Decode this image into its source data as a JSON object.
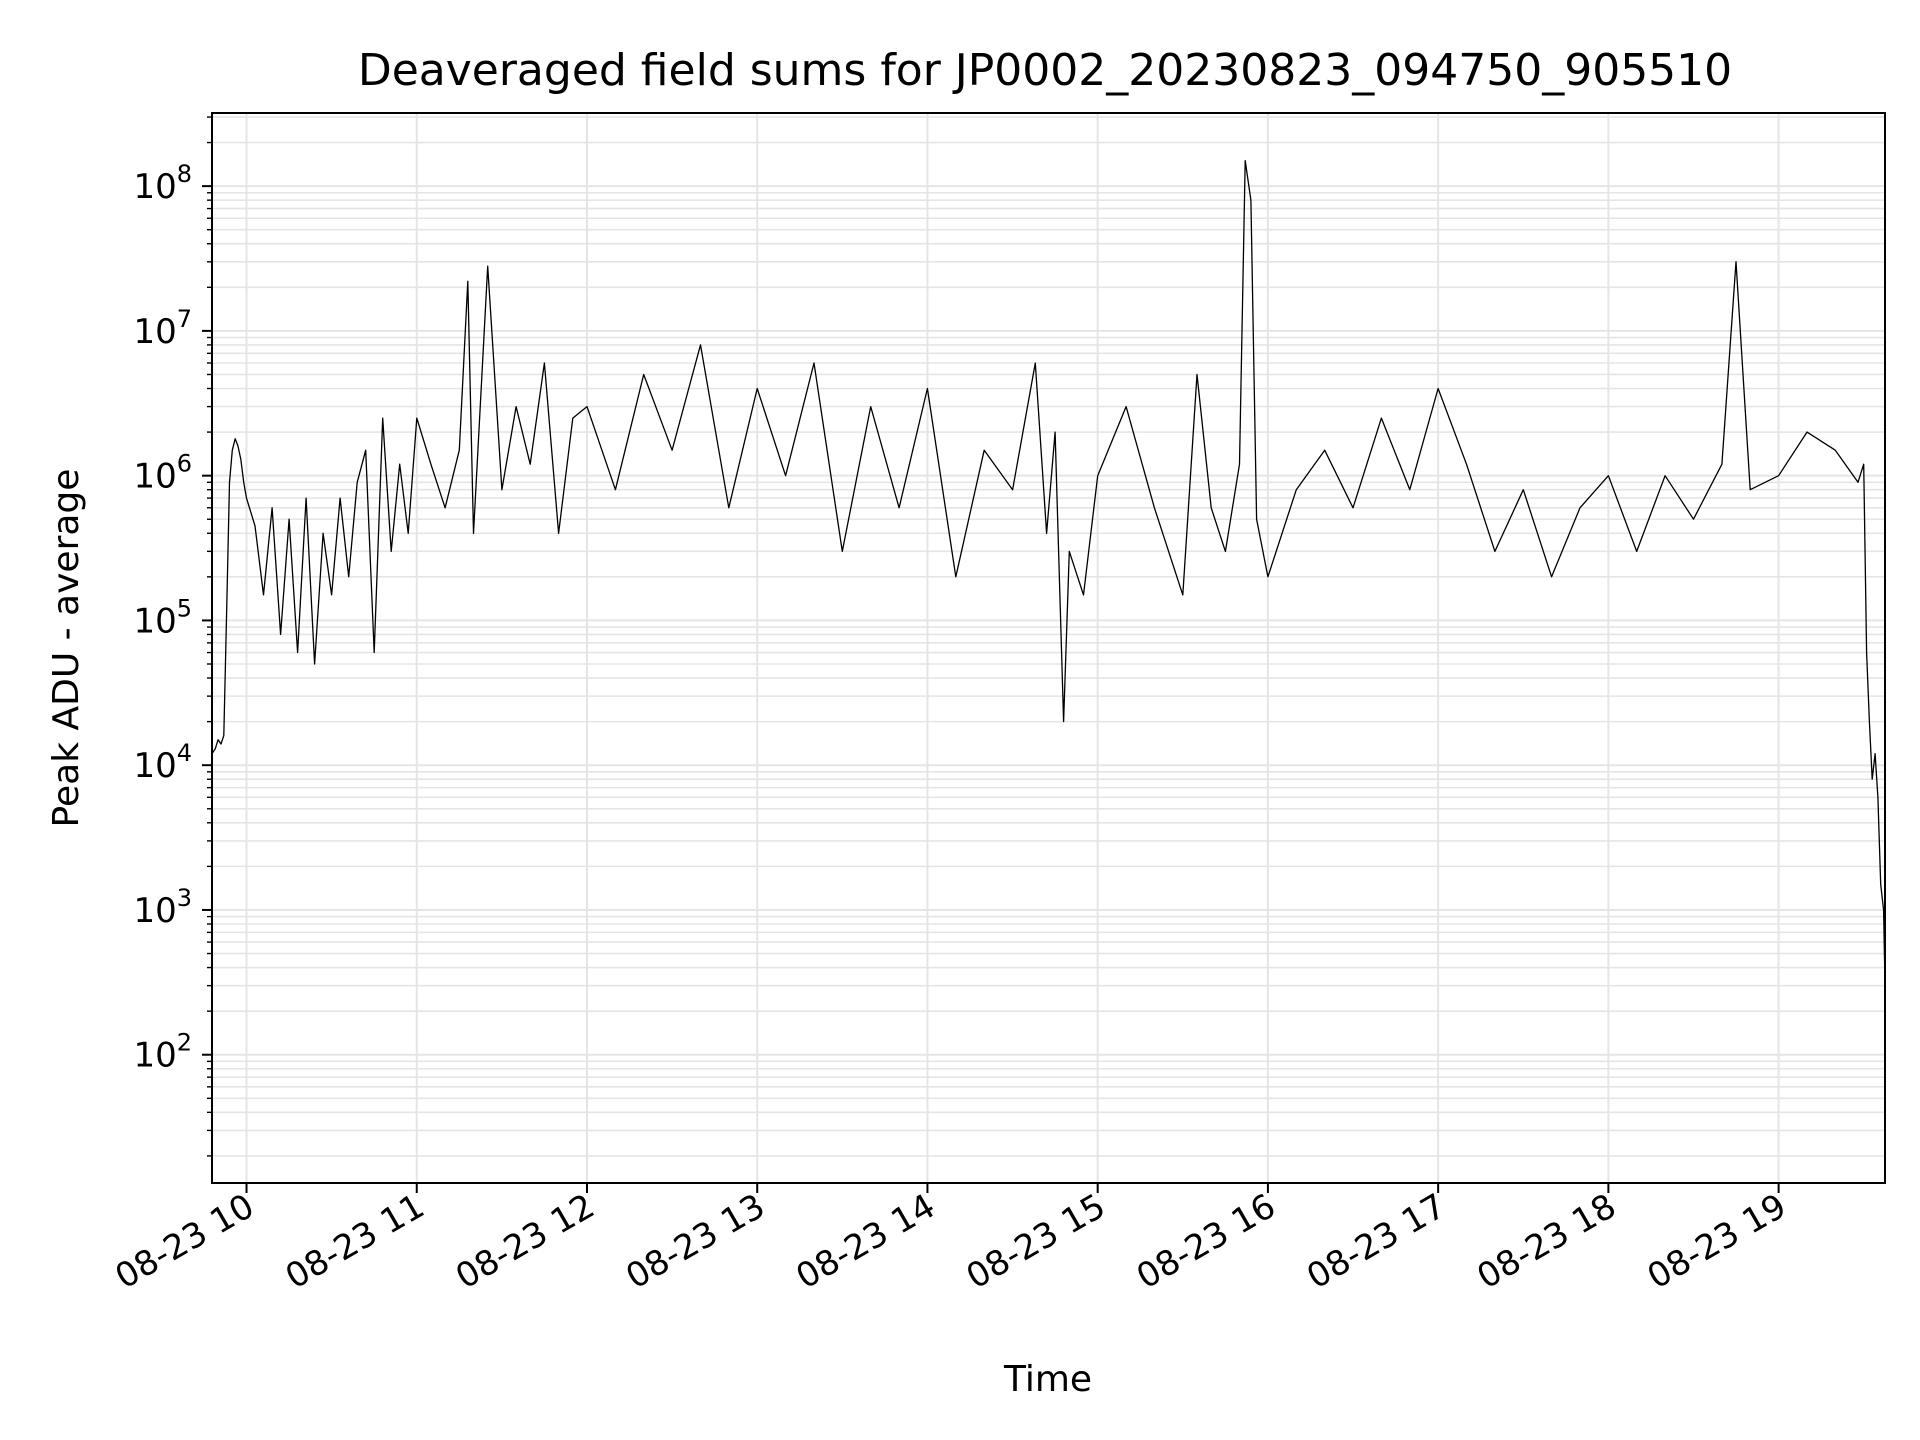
{
  "chart_data": {
    "type": "line",
    "title": "Deaveraged field sums for JP0002_20230823_094750_905510",
    "xlabel": "Time",
    "ylabel": "Peak ADU - average",
    "y_scale": "log",
    "ylim": [
      13,
      320000000
    ],
    "xlim": [
      "2023-08-23 09:47:50",
      "2023-08-23 19:37:30"
    ],
    "grid": true,
    "line_color": "#000000",
    "grid_color": "#e5e5e5",
    "x_ticks": [
      {
        "t": "2023-08-23 10:00:00",
        "label": "08-23 10"
      },
      {
        "t": "2023-08-23 11:00:00",
        "label": "08-23 11"
      },
      {
        "t": "2023-08-23 12:00:00",
        "label": "08-23 12"
      },
      {
        "t": "2023-08-23 13:00:00",
        "label": "08-23 13"
      },
      {
        "t": "2023-08-23 14:00:00",
        "label": "08-23 14"
      },
      {
        "t": "2023-08-23 15:00:00",
        "label": "08-23 15"
      },
      {
        "t": "2023-08-23 16:00:00",
        "label": "08-23 16"
      },
      {
        "t": "2023-08-23 17:00:00",
        "label": "08-23 17"
      },
      {
        "t": "2023-08-23 18:00:00",
        "label": "08-23 18"
      },
      {
        "t": "2023-08-23 19:00:00",
        "label": "08-23 19"
      }
    ],
    "y_ticks": [
      {
        "value": 100,
        "base": "10",
        "exp": "2"
      },
      {
        "value": 1000,
        "base": "10",
        "exp": "3"
      },
      {
        "value": 10000,
        "base": "10",
        "exp": "4"
      },
      {
        "value": 100000,
        "base": "10",
        "exp": "5"
      },
      {
        "value": 1000000,
        "base": "10",
        "exp": "6"
      },
      {
        "value": 10000000,
        "base": "10",
        "exp": "7"
      },
      {
        "value": 100000000,
        "base": "10",
        "exp": "8"
      }
    ],
    "series": [
      {
        "x": [
          "2023-08-23 09:47:50",
          "2023-08-23 09:49:00",
          "2023-08-23 09:50:00",
          "2023-08-23 09:51:00",
          "2023-08-23 09:52:00",
          "2023-08-23 09:53:00",
          "2023-08-23 09:54:00",
          "2023-08-23 09:55:00",
          "2023-08-23 09:56:00",
          "2023-08-23 09:57:00",
          "2023-08-23 09:58:00",
          "2023-08-23 09:59:00",
          "2023-08-23 10:00:00",
          "2023-08-23 10:03:00",
          "2023-08-23 10:06:00",
          "2023-08-23 10:09:00",
          "2023-08-23 10:12:00",
          "2023-08-23 10:15:00",
          "2023-08-23 10:18:00",
          "2023-08-23 10:21:00",
          "2023-08-23 10:24:00",
          "2023-08-23 10:27:00",
          "2023-08-23 10:30:00",
          "2023-08-23 10:33:00",
          "2023-08-23 10:36:00",
          "2023-08-23 10:39:00",
          "2023-08-23 10:42:00",
          "2023-08-23 10:45:00",
          "2023-08-23 10:48:00",
          "2023-08-23 10:51:00",
          "2023-08-23 10:54:00",
          "2023-08-23 10:57:00",
          "2023-08-23 11:00:00",
          "2023-08-23 11:05:00",
          "2023-08-23 11:10:00",
          "2023-08-23 11:15:00",
          "2023-08-23 11:18:00",
          "2023-08-23 11:20:00",
          "2023-08-23 11:25:00",
          "2023-08-23 11:30:00",
          "2023-08-23 11:35:00",
          "2023-08-23 11:40:00",
          "2023-08-23 11:45:00",
          "2023-08-23 11:50:00",
          "2023-08-23 11:55:00",
          "2023-08-23 12:00:00",
          "2023-08-23 12:10:00",
          "2023-08-23 12:20:00",
          "2023-08-23 12:30:00",
          "2023-08-23 12:40:00",
          "2023-08-23 12:50:00",
          "2023-08-23 13:00:00",
          "2023-08-23 13:10:00",
          "2023-08-23 13:20:00",
          "2023-08-23 13:30:00",
          "2023-08-23 13:40:00",
          "2023-08-23 13:50:00",
          "2023-08-23 14:00:00",
          "2023-08-23 14:10:00",
          "2023-08-23 14:20:00",
          "2023-08-23 14:30:00",
          "2023-08-23 14:38:00",
          "2023-08-23 14:42:00",
          "2023-08-23 14:45:00",
          "2023-08-23 14:48:00",
          "2023-08-23 14:50:00",
          "2023-08-23 14:55:00",
          "2023-08-23 15:00:00",
          "2023-08-23 15:10:00",
          "2023-08-23 15:20:00",
          "2023-08-23 15:30:00",
          "2023-08-23 15:35:00",
          "2023-08-23 15:40:00",
          "2023-08-23 15:45:00",
          "2023-08-23 15:50:00",
          "2023-08-23 15:52:00",
          "2023-08-23 15:54:00",
          "2023-08-23 15:56:00",
          "2023-08-23 16:00:00",
          "2023-08-23 16:10:00",
          "2023-08-23 16:20:00",
          "2023-08-23 16:30:00",
          "2023-08-23 16:40:00",
          "2023-08-23 16:50:00",
          "2023-08-23 17:00:00",
          "2023-08-23 17:10:00",
          "2023-08-23 17:20:00",
          "2023-08-23 17:30:00",
          "2023-08-23 17:40:00",
          "2023-08-23 17:50:00",
          "2023-08-23 18:00:00",
          "2023-08-23 18:10:00",
          "2023-08-23 18:20:00",
          "2023-08-23 18:30:00",
          "2023-08-23 18:40:00",
          "2023-08-23 18:45:00",
          "2023-08-23 18:50:00",
          "2023-08-23 19:00:00",
          "2023-08-23 19:10:00",
          "2023-08-23 19:20:00",
          "2023-08-23 19:28:00",
          "2023-08-23 19:30:00",
          "2023-08-23 19:31:00",
          "2023-08-23 19:32:00",
          "2023-08-23 19:33:00",
          "2023-08-23 19:34:00",
          "2023-08-23 19:35:00",
          "2023-08-23 19:36:00",
          "2023-08-23 19:37:00",
          "2023-08-23 19:37:30"
        ],
        "values": [
          12000,
          13000,
          15000,
          14000,
          16000,
          120000,
          900000,
          1500000,
          1800000,
          1600000,
          1300000,
          900000,
          700000,
          450000,
          150000,
          600000,
          80000,
          500000,
          60000,
          700000,
          50000,
          400000,
          150000,
          700000,
          200000,
          900000,
          1500000,
          60000,
          2500000,
          300000,
          1200000,
          400000,
          2500000,
          1200000,
          600000,
          1500000,
          22000000,
          400000,
          28000000,
          800000,
          3000000,
          1200000,
          6000000,
          400000,
          2500000,
          3000000,
          800000,
          5000000,
          1500000,
          8000000,
          600000,
          4000000,
          1000000,
          6000000,
          300000,
          3000000,
          600000,
          4000000,
          200000,
          1500000,
          800000,
          6000000,
          400000,
          2000000,
          20000,
          300000,
          150000,
          1000000,
          3000000,
          600000,
          150000,
          5000000,
          600000,
          300000,
          1200000,
          150000000,
          80000000,
          500000,
          200000,
          800000,
          1500000,
          600000,
          2500000,
          800000,
          4000000,
          1200000,
          300000,
          800000,
          200000,
          600000,
          1000000,
          300000,
          1000000,
          500000,
          1200000,
          30000000,
          800000,
          1000000,
          2000000,
          1500000,
          900000,
          1200000,
          60000,
          20000,
          8000,
          12000,
          6000,
          1500,
          1000,
          300
        ]
      }
    ]
  }
}
